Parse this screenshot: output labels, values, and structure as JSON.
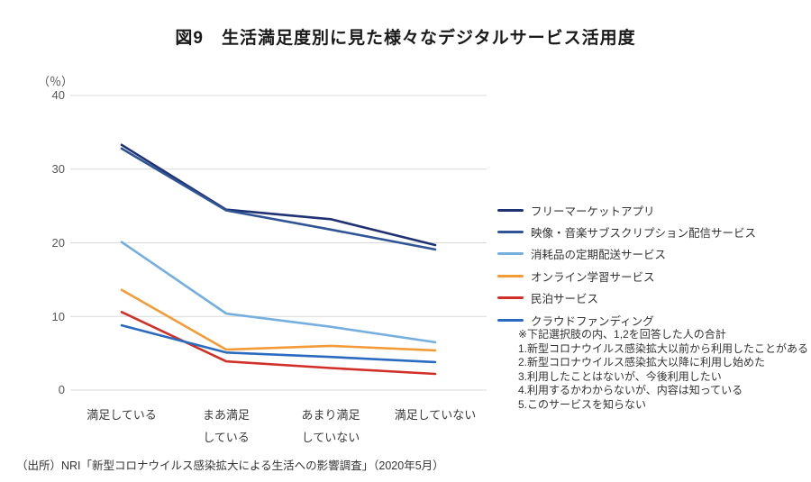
{
  "chart_data": {
    "type": "line",
    "title": "図9　生活満足度別に見た様々なデジタルサービス活用度",
    "y_unit_label": "（％）",
    "xlabel": "",
    "ylabel": "",
    "ylim": [
      0,
      40
    ],
    "yticks": [
      0,
      10,
      20,
      30,
      40
    ],
    "grid": true,
    "legend_position": "right",
    "categories": [
      [
        "満足している"
      ],
      [
        "まあ満足",
        "している"
      ],
      [
        "あまり満足",
        "していない"
      ],
      [
        "満足していない"
      ]
    ],
    "series": [
      {
        "name": "フリーマーケットアプリ",
        "color": "#1F3273",
        "values": [
          33.3,
          24.5,
          23.2,
          19.7
        ]
      },
      {
        "name": "映像・音楽サブスクリプション配信サービス",
        "color": "#2F5597",
        "values": [
          32.8,
          24.4,
          21.8,
          19.1
        ]
      },
      {
        "name": "消耗品の定期配送サービス",
        "color": "#74AFE0",
        "values": [
          20.1,
          10.4,
          8.6,
          6.5
        ]
      },
      {
        "name": "オンライン学習サービス",
        "color": "#F29C38",
        "values": [
          13.6,
          5.5,
          6.0,
          5.4
        ]
      },
      {
        "name": "民泊サービス",
        "color": "#D03028",
        "values": [
          10.6,
          3.9,
          3.0,
          2.2
        ]
      },
      {
        "name": "クラウドファンディング",
        "color": "#2A6BC0",
        "values": [
          8.8,
          5.1,
          4.5,
          3.8
        ]
      }
    ],
    "gridline_color": "#D9D9D9"
  },
  "notes": [
    "※下記選択肢の内、1,2を回答した人の合計",
    "1.新型コロナウイルス感染拡大以前から利用したことがある",
    "2.新型コロナウイルス感染拡大以降に利用し始めた",
    "3.利用したことはないが、今後利用したい",
    "4.利用するかわからないが、内容は知っている",
    "5.このサービスを知らない"
  ],
  "source": "（出所）NRI「新型コロナウイルス感染拡大による生活への影響調査」（2020年5月）"
}
